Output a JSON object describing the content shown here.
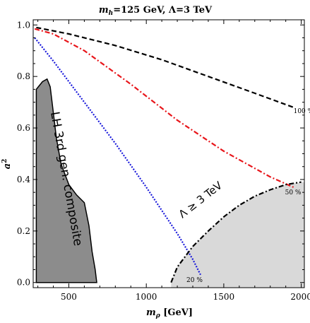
{
  "chart_data": {
    "type": "line",
    "title_main": "m",
    "title_sub": "h",
    "title_rest": "=125 GeV,  Λ=3 TeV",
    "xlabel_main": "m",
    "xlabel_sub": "ρ",
    "xlabel_rest": " [GeV]",
    "ylabel_main": "a",
    "ylabel_sup": "2",
    "xlim": [
      270,
      2020
    ],
    "ylim": [
      -0.02,
      1.02
    ],
    "xticks": [
      500,
      1000,
      1500,
      2000
    ],
    "xtick_labels": [
      "500",
      "1000",
      "1500",
      "2000"
    ],
    "yticks": [
      0.0,
      0.2,
      0.4,
      0.6,
      0.8,
      1.0
    ],
    "ytick_labels": [
      "0.0",
      "0.2",
      "0.4",
      "0.6",
      "0.8",
      "1.0"
    ],
    "series": [
      {
        "label": "100 %",
        "color": "#000000",
        "dash": "dashed",
        "x": [
          290,
          500,
          800,
          1100,
          1400,
          1700,
          1950
        ],
        "y": [
          0.99,
          0.965,
          0.92,
          0.865,
          0.8,
          0.735,
          0.68
        ]
      },
      {
        "label": "50 %",
        "color": "#e8161b",
        "dash": "dashdot",
        "x": [
          280,
          400,
          600,
          900,
          1200,
          1500,
          1800,
          1950
        ],
        "y": [
          0.985,
          0.965,
          0.9,
          0.77,
          0.63,
          0.51,
          0.41,
          0.37
        ]
      },
      {
        "label": "20 %",
        "color": "#1a1adb",
        "dash": "dotted",
        "x": [
          280,
          400,
          600,
          800,
          1000,
          1100,
          1200,
          1300,
          1350
        ],
        "y": [
          0.95,
          0.86,
          0.7,
          0.54,
          0.37,
          0.28,
          0.19,
          0.09,
          0.03
        ]
      }
    ],
    "bound": {
      "label": "Λ ≥ 3 TeV",
      "color": "#000000",
      "dash": "dashdot",
      "fill": "#d9d9d9",
      "x": [
        1160,
        1200,
        1300,
        1400,
        1500,
        1600,
        1700,
        1800,
        1900,
        2000
      ],
      "y": [
        0.0,
        0.06,
        0.14,
        0.2,
        0.255,
        0.3,
        0.335,
        0.36,
        0.38,
        0.39
      ]
    },
    "region": {
      "label": "LH 3rd gen. composite",
      "fill": "#8c8c8c",
      "x": [
        290,
        330,
        360,
        380,
        400,
        420,
        450,
        500,
        550,
        600,
        630,
        650,
        670,
        680,
        290
      ],
      "y": [
        0.75,
        0.78,
        0.79,
        0.76,
        0.66,
        0.56,
        0.46,
        0.38,
        0.34,
        0.31,
        0.22,
        0.12,
        0.05,
        0.0,
        0.0
      ]
    }
  }
}
